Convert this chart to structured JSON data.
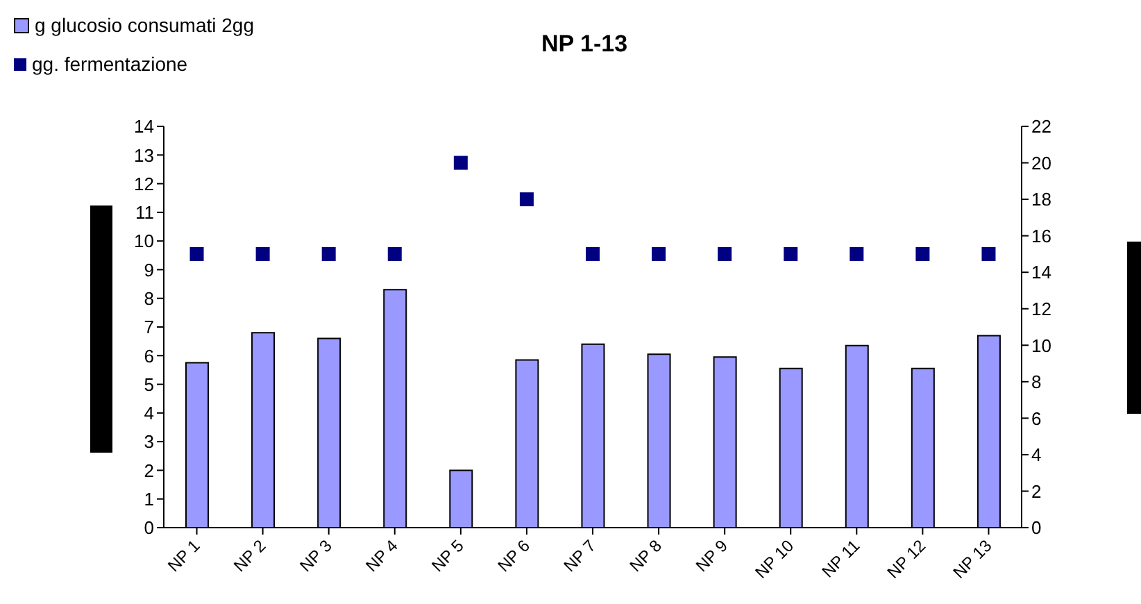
{
  "chart_data": {
    "type": "bar",
    "title": "NP 1-13",
    "categories": [
      "NP 1",
      "NP 2",
      "NP 3",
      "NP 4",
      "NP 5",
      "NP 6",
      "NP 7",
      "NP 8",
      "NP 9",
      "NP 10",
      "NP 11",
      "NP 12",
      "NP 13"
    ],
    "series": [
      {
        "name": "g glucosio consumati 2gg",
        "color": "#9999ff",
        "values": [
          5.75,
          6.8,
          6.6,
          8.3,
          2.0,
          5.85,
          6.4,
          6.05,
          5.95,
          5.55,
          6.35,
          5.55,
          6.7
        ]
      },
      {
        "name": "gg. fermentazione",
        "type": "scatter",
        "axis": "y2",
        "color": "#000080",
        "values": [
          15,
          15,
          15,
          15,
          20,
          18,
          15,
          15,
          15,
          15,
          15,
          15,
          15
        ]
      }
    ],
    "ylim": [
      0,
      14
    ],
    "yticks": [
      0,
      1,
      2,
      3,
      4,
      5,
      6,
      7,
      8,
      9,
      10,
      11,
      12,
      13,
      14
    ],
    "y2lim": [
      0,
      22
    ],
    "y2ticks": [
      0,
      2,
      4,
      6,
      8,
      10,
      12,
      14,
      16,
      18,
      20,
      22
    ],
    "marker": "square",
    "legend": "top left",
    "grid": false
  }
}
